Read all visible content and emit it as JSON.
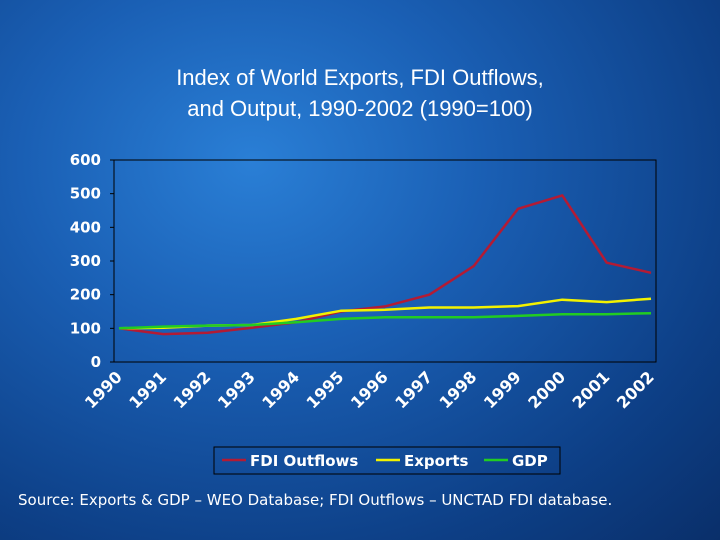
{
  "chart_data": {
    "type": "line",
    "title_line1": "Index of World Exports, FDI Outflows,",
    "title_line2": "and Output, 1990-2002 (1990=100)",
    "categories": [
      "1990",
      "1991",
      "1992",
      "1993",
      "1994",
      "1995",
      "1996",
      "1997",
      "1998",
      "1999",
      "2000",
      "2001",
      "2002"
    ],
    "ylim": [
      0,
      600
    ],
    "yticks": [
      "0",
      "100",
      "200",
      "300",
      "400",
      "500",
      "600"
    ],
    "grid": false,
    "legend_position": "bottom",
    "series": [
      {
        "name": "FDI Outflows",
        "color": "#b31b34",
        "values": [
          100,
          83,
          87,
          102,
          118,
          150,
          165,
          200,
          285,
          455,
          495,
          295,
          265
        ]
      },
      {
        "name": "Exports",
        "color": "#f2f200",
        "values": [
          100,
          102,
          108,
          110,
          128,
          152,
          155,
          162,
          162,
          166,
          185,
          178,
          188
        ]
      },
      {
        "name": "GDP",
        "color": "#22cc22",
        "values": [
          100,
          105,
          108,
          110,
          118,
          128,
          133,
          133,
          133,
          137,
          142,
          142,
          145
        ]
      }
    ]
  },
  "source_text": "Source: Exports & GDP – WEO Database; FDI Outflows – UNCTAD FDI database."
}
